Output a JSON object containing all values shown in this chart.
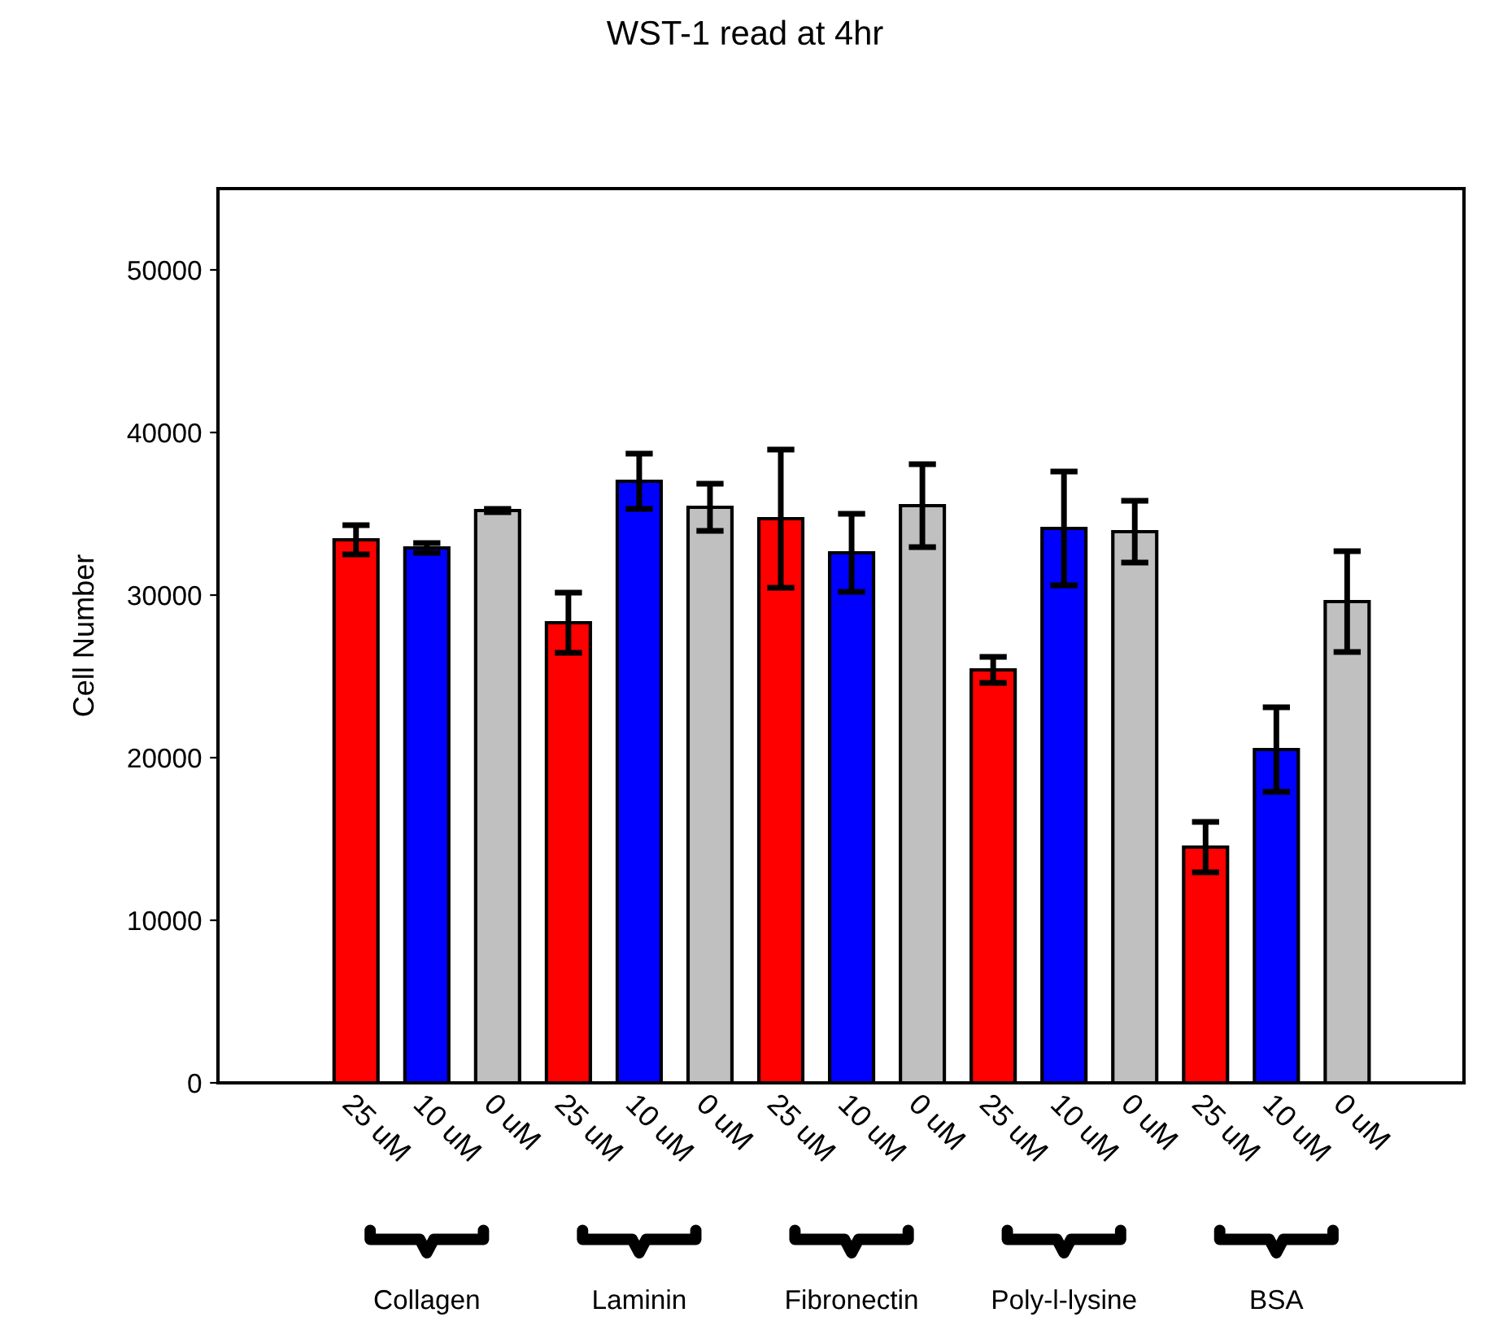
{
  "chart_data": {
    "type": "bar",
    "title": "WST-1 read at 4hr",
    "ylabel": "Cell Number",
    "categories": [
      "25 uM",
      "10 uM",
      "0 uM",
      "25 uM",
      "10 uM",
      "0 uM",
      "25 uM",
      "10 uM",
      "0 uM",
      "25 uM",
      "10 uM",
      "0 uM",
      "25 uM",
      "10 uM",
      "0 uM"
    ],
    "values": [
      33400,
      32900,
      35200,
      28300,
      37000,
      35400,
      34700,
      32600,
      35500,
      25400,
      34100,
      33900,
      14500,
      20500,
      29600
    ],
    "errors": [
      900,
      300,
      100,
      1850,
      1700,
      1450,
      4250,
      2400,
      2550,
      800,
      3500,
      1900,
      1550,
      2600,
      3100
    ],
    "colors": [
      "#ff0000",
      "#0000ff",
      "#c0c0c0",
      "#ff0000",
      "#0000ff",
      "#c0c0c0",
      "#ff0000",
      "#0000ff",
      "#c0c0c0",
      "#ff0000",
      "#0000ff",
      "#c0c0c0",
      "#ff0000",
      "#0000ff",
      "#c0c0c0"
    ],
    "ylim": [
      0,
      55000
    ],
    "yticks": [
      0,
      10000,
      20000,
      30000,
      40000,
      50000
    ],
    "grid": false,
    "legend": false,
    "annotations": [
      "Collagen",
      "Laminin",
      "Fibronectin",
      "Poly-l-lysine",
      "BSA"
    ]
  }
}
